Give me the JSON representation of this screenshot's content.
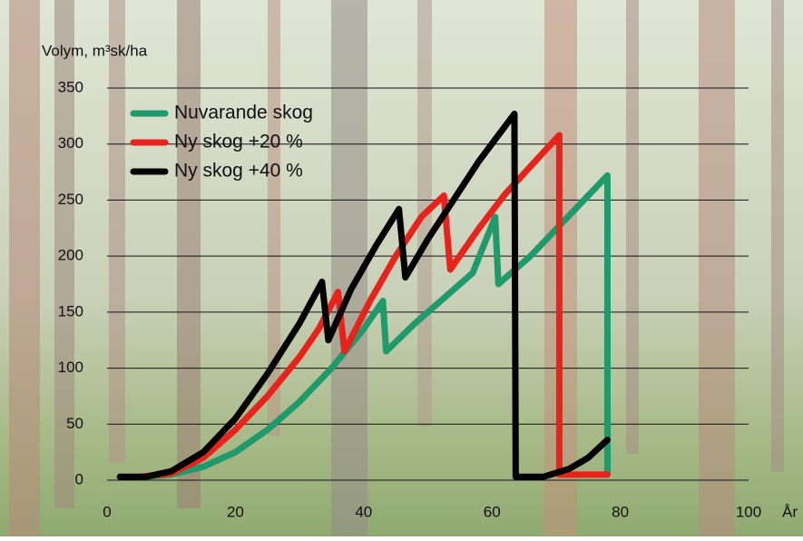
{
  "chart_data": {
    "type": "line",
    "y_label": "Volym, m³sk/ha",
    "x_label": "År",
    "xlim": [
      0,
      100
    ],
    "xticks": [
      0,
      20,
      40,
      60,
      80,
      100
    ],
    "ylim": [
      0,
      350
    ],
    "yticks": [
      0,
      50,
      100,
      150,
      200,
      250,
      300,
      350
    ],
    "grid": true,
    "legend": "top-left",
    "series": [
      {
        "name": "Nuvarande skog",
        "color": "#1f9a6a",
        "x": [
          6,
          10,
          15,
          20,
          25,
          30,
          35,
          40,
          43,
          43.5,
          48,
          53,
          57,
          60.5,
          61,
          66,
          71,
          78,
          78
        ],
        "values": [
          3,
          5,
          12,
          25,
          45,
          70,
          100,
          135,
          160,
          115,
          140,
          165,
          185,
          235,
          175,
          200,
          230,
          272,
          5
        ]
      },
      {
        "name": "Ny skog +20 %",
        "color": "#e8231c",
        "x": [
          5,
          10,
          15,
          20,
          25,
          30,
          33,
          36,
          37,
          41,
          45,
          49,
          52.5,
          53.5,
          58,
          62,
          66,
          70.5,
          70.5,
          74,
          78
        ],
        "values": [
          3,
          6,
          20,
          45,
          75,
          110,
          135,
          168,
          115,
          160,
          200,
          235,
          254,
          188,
          225,
          255,
          280,
          308,
          5,
          5,
          5
        ]
      },
      {
        "name": "Ny skog +40 %",
        "color": "#000000",
        "x": [
          2,
          6,
          10,
          15,
          20,
          25,
          30,
          33.5,
          34.5,
          38,
          42,
          45.5,
          46.5,
          50,
          54,
          58,
          63.5,
          63.7,
          68,
          72,
          75,
          78
        ],
        "values": [
          3,
          3,
          8,
          25,
          55,
          95,
          140,
          177,
          125,
          170,
          210,
          242,
          181,
          215,
          250,
          285,
          327,
          3,
          3,
          10,
          20,
          36
        ]
      }
    ]
  }
}
